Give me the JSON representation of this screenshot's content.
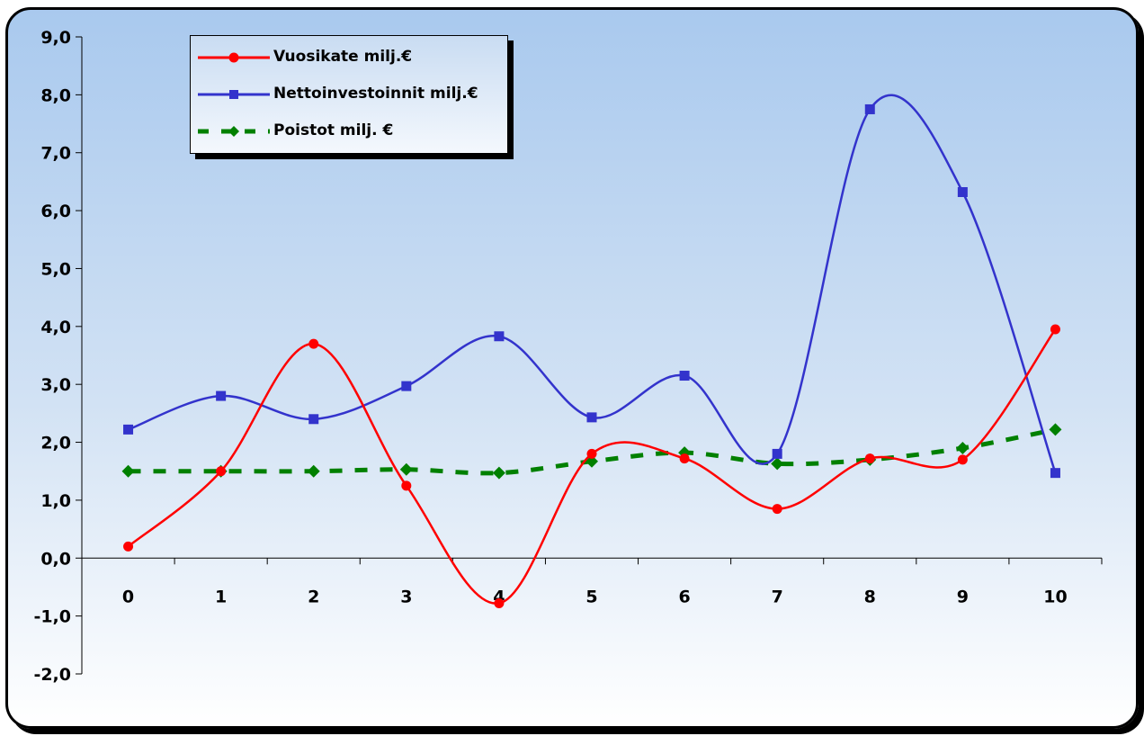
{
  "chart_data": {
    "type": "line",
    "title": "",
    "xlabel": "",
    "ylabel": "",
    "categories": [
      "0",
      "1",
      "2",
      "3",
      "4",
      "5",
      "6",
      "7",
      "8",
      "9",
      "10"
    ],
    "ylim": [
      -2.0,
      9.0
    ],
    "yticks": [
      "9,0",
      "8,0",
      "7,0",
      "6,0",
      "5,0",
      "4,0",
      "3,0",
      "2,0",
      "1,0",
      "0,0",
      "-1,0",
      "-2,0"
    ],
    "grid": false,
    "legend_position": "top-left",
    "series": [
      {
        "name": "Vuosikate milj.€",
        "color": "#ff0000",
        "marker": "circle",
        "style": "solid",
        "values": [
          0.2,
          1.5,
          3.7,
          1.25,
          -0.78,
          1.8,
          1.72,
          0.85,
          1.72,
          1.7,
          3.95
        ]
      },
      {
        "name": "Nettoinvestoinnit milj.€",
        "color": "#3333cc",
        "marker": "square",
        "style": "solid",
        "values": [
          2.22,
          2.8,
          2.4,
          2.97,
          3.83,
          2.43,
          3.15,
          1.8,
          7.75,
          6.32,
          1.47
        ]
      },
      {
        "name": "Poistot milj. €",
        "color": "#008000",
        "marker": "diamond",
        "style": "dashed",
        "values": [
          1.5,
          1.5,
          1.5,
          1.53,
          1.47,
          1.67,
          1.82,
          1.63,
          1.7,
          1.9,
          2.22
        ]
      }
    ]
  }
}
